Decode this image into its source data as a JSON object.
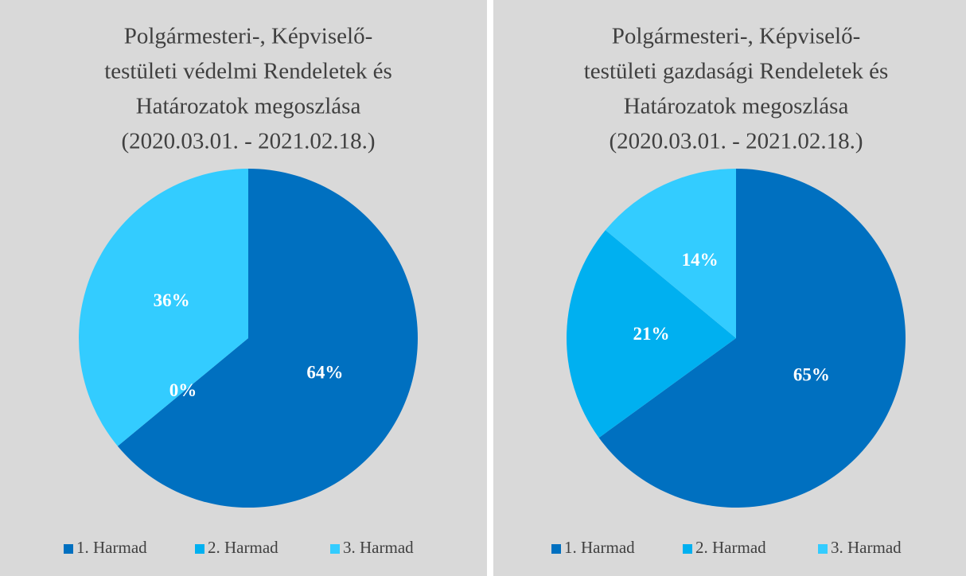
{
  "chart_data": [
    {
      "type": "pie",
      "title": [
        "Polgármesteri-, Képviselő-",
        "testületi védelmi Rendeletek és",
        "Határozatok megoszlása",
        "(2020.03.01. - 2021.02.18.)"
      ],
      "categories": [
        "1. Harmad",
        "2. Harmad",
        "3. Harmad"
      ],
      "values": [
        64,
        0,
        36
      ],
      "value_labels": [
        "64%",
        "0%",
        "36%"
      ],
      "colors": [
        "#0070c0",
        "#00b0f0",
        "#33ccff"
      ],
      "legend": "bottom"
    },
    {
      "type": "pie",
      "title": [
        "Polgármesteri-, Képviselő-",
        "testületi gazdasági Rendeletek és",
        "Határozatok megoszlása",
        "(2020.03.01. - 2021.02.18.)"
      ],
      "categories": [
        "1. Harmad",
        "2. Harmad",
        "3. Harmad"
      ],
      "values": [
        65,
        21,
        14
      ],
      "value_labels": [
        "65%",
        "21%",
        "14%"
      ],
      "colors": [
        "#0070c0",
        "#00b0f0",
        "#33ccff"
      ],
      "legend": "bottom"
    }
  ]
}
